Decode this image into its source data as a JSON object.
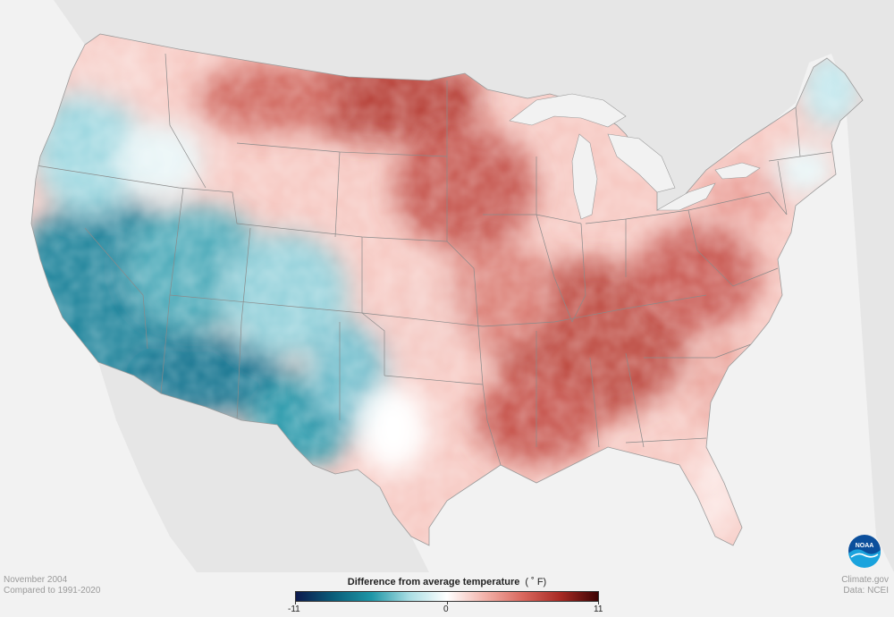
{
  "footer": {
    "period": "November 2004",
    "baseline": "Compared to 1991-2020",
    "source_site": "Climate.gov",
    "source_data": "Data: NCEI"
  },
  "legend": {
    "title": "Difference from average temperature",
    "unit": "( ˚ F)",
    "min": -11,
    "mid": 0,
    "max": 11,
    "min_label": "-11",
    "mid_label": "0",
    "max_label": "11",
    "colors": [
      "#0d1a4d",
      "#0b5e7a",
      "#1e96a6",
      "#a9dde3",
      "#ffffff",
      "#f3b3aa",
      "#d9685e",
      "#a82a24",
      "#3d0404"
    ]
  },
  "map": {
    "region": "contiguous-united-states",
    "land_color": "#e6e6e6",
    "water_color": "#f2f2f2",
    "border_color": "#888888"
  },
  "logo": {
    "text": "NOAA",
    "color_outer": "#0b4f9c",
    "color_inner": "#1aa3dd"
  }
}
